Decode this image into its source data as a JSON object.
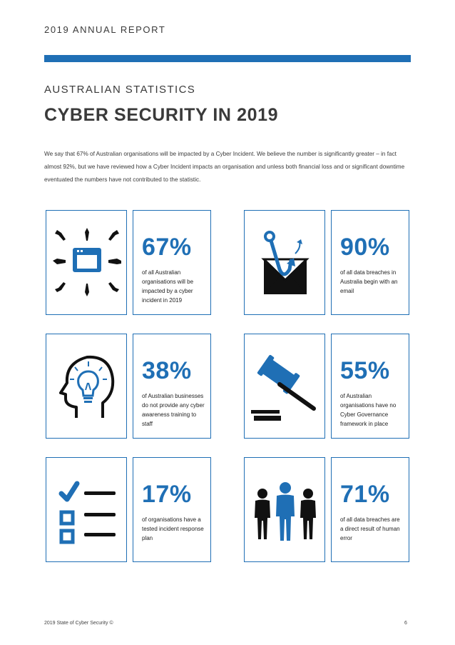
{
  "header": {
    "title": "2019 ANNUAL REPORT"
  },
  "section": {
    "kicker": "AUSTRALIAN STATISTICS",
    "title": "CYBER SECURITY IN 2019",
    "intro": "We say that 67% of Australian organisations will be impacted by a Cyber Incident. We believe the number is significantly greater – in fact almost 92%, but we have reviewed how a Cyber Incident impacts an organisation and unless both financial loss and or significant downtime eventuated the numbers have not contributed to the statistic."
  },
  "stats": [
    {
      "value": "67%",
      "desc": "of all Australian organisations will be impacted by a cyber incident in 2019",
      "icon": "computer-under-attack-icon"
    },
    {
      "value": "90%",
      "desc": "of all data breaches in Australia begin with an email",
      "icon": "phishing-email-icon"
    },
    {
      "value": "38%",
      "desc": "of Australian businesses do not provide any cyber awareness training to staff",
      "icon": "head-lightbulb-icon"
    },
    {
      "value": "55%",
      "desc": "of Australian organisations have no Cyber Governance framework in place",
      "icon": "gavel-icon"
    },
    {
      "value": "17%",
      "desc": "of organisations have a tested incident response plan",
      "icon": "checklist-icon"
    },
    {
      "value": "71%",
      "desc": "of all data breaches are a direct result of human error",
      "icon": "people-icon"
    }
  ],
  "footer": {
    "left": "2019 State of Cyber Security ©",
    "right": "6"
  },
  "colors": {
    "accent": "#1f6fb5",
    "text": "#3a3a3a",
    "icon_dark": "#111111"
  }
}
